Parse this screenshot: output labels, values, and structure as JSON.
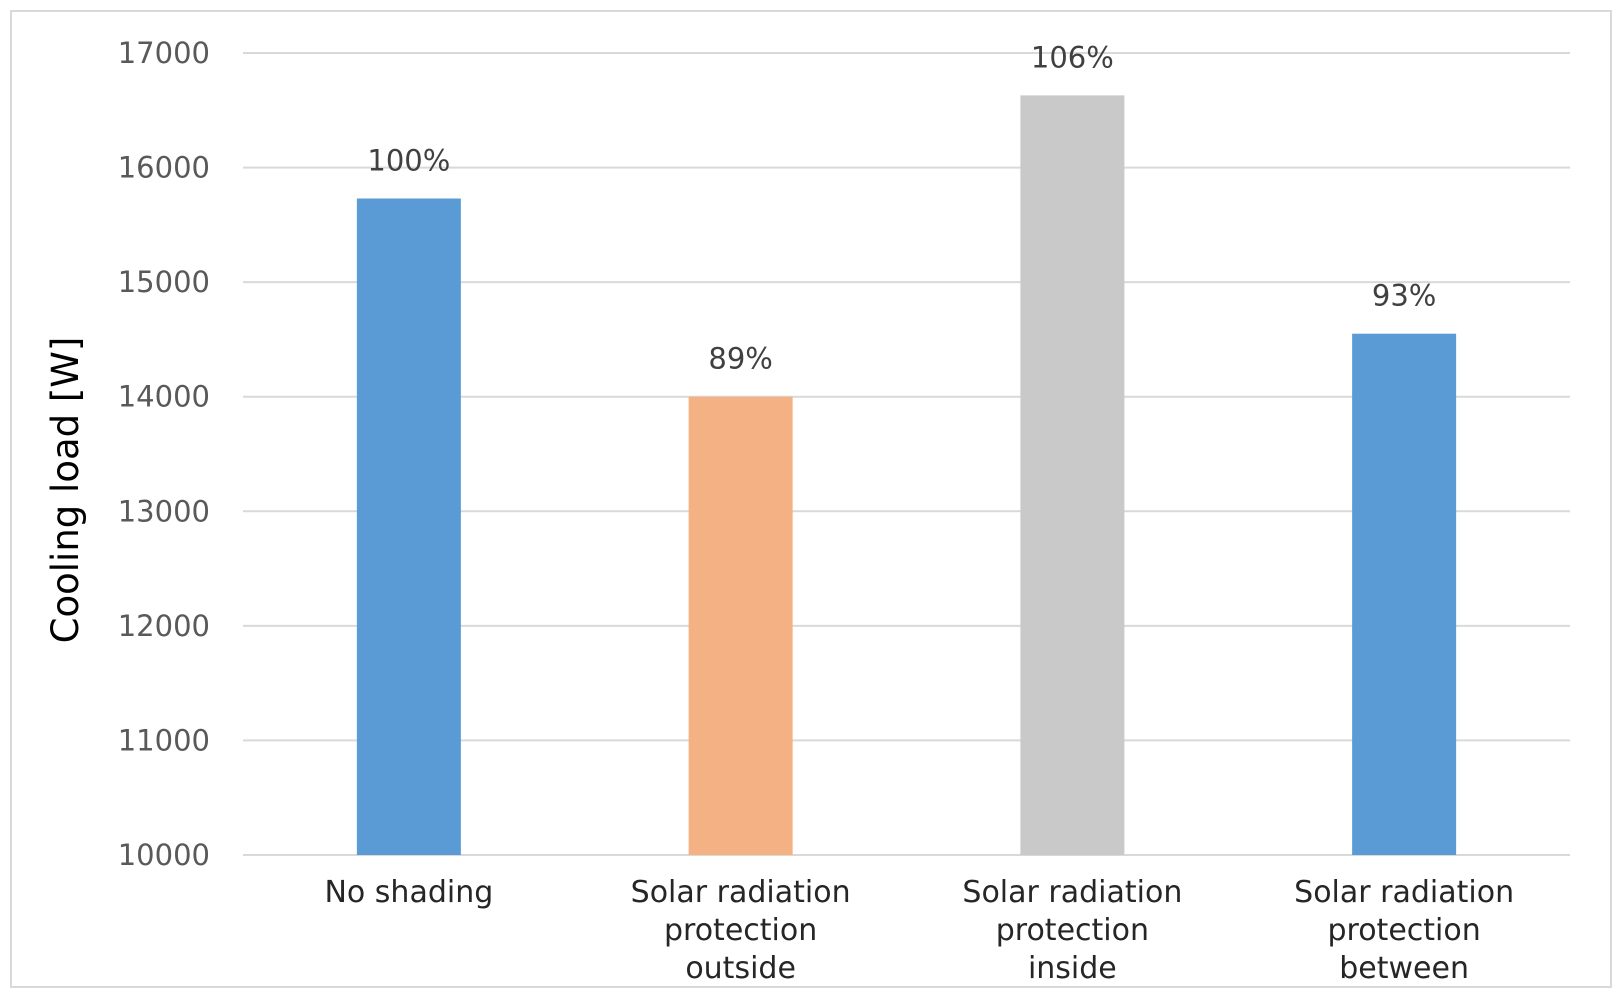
{
  "chart_data": {
    "type": "bar",
    "title": "",
    "xlabel": "",
    "ylabel": "Cooling load [W]",
    "ylim": [
      10000,
      17000
    ],
    "yticks": [
      10000,
      11000,
      12000,
      13000,
      14000,
      15000,
      16000,
      17000
    ],
    "grid": true,
    "categories": [
      [
        "No shading"
      ],
      [
        "Solar radiation",
        "protection",
        "outside"
      ],
      [
        "Solar radiation",
        "protection",
        "inside"
      ],
      [
        "Solar radiation",
        "protection",
        "between"
      ]
    ],
    "values": [
      15730,
      14000,
      16630,
      14550
    ],
    "data_labels": [
      "100%",
      "89%",
      "106%",
      "93%"
    ],
    "colors": [
      "#5b9bd5",
      "#f4b183",
      "#c9c9c9",
      "#5b9bd5"
    ],
    "gridline_color": "#d9d9d9"
  }
}
